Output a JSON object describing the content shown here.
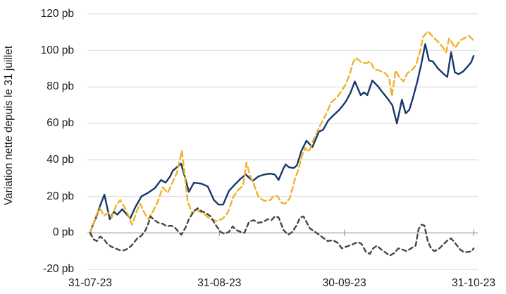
{
  "chart_data": {
    "type": "line",
    "title": "",
    "xlabel": "",
    "ylabel": "Variation nette depuis le 31 juillet",
    "y_unit": "pb",
    "ylim": [
      -20,
      120
    ],
    "y_ticks": [
      120,
      100,
      80,
      60,
      40,
      20,
      0,
      -20
    ],
    "y_tick_labels": [
      "120 pb",
      "100 pb",
      "80 pb",
      "60 pb",
      "40 pb",
      "20 pb",
      "0 pb",
      "-20 pb"
    ],
    "x_tick_days": [
      0,
      31,
      61,
      92
    ],
    "x_tick_labels": [
      "31-07-23",
      "31-08-23",
      "30-09-23",
      "31-10-23"
    ],
    "x_range_days": [
      0,
      92
    ],
    "grid": "horizontal",
    "legend": "none",
    "series": [
      {
        "id": "line-navy-solid",
        "color": "#17386B",
        "style": "solid",
        "points": [
          [
            0,
            0
          ],
          [
            0.6,
            4
          ],
          [
            1.5,
            9
          ],
          [
            2.4,
            15
          ],
          [
            3.4,
            21
          ],
          [
            4.7,
            7.5
          ],
          [
            5.7,
            11.5
          ],
          [
            6.5,
            10
          ],
          [
            7.7,
            13
          ],
          [
            8.6,
            10.5
          ],
          [
            9.6,
            8
          ],
          [
            10.8,
            14
          ],
          [
            12.3,
            20
          ],
          [
            13.9,
            22
          ],
          [
            15.5,
            24.5
          ],
          [
            17,
            29
          ],
          [
            18.1,
            27.5
          ],
          [
            19.2,
            31
          ],
          [
            19.8,
            34
          ],
          [
            21.8,
            38
          ],
          [
            22.8,
            30
          ],
          [
            23.7,
            22.5
          ],
          [
            24.9,
            27.5
          ],
          [
            26.6,
            27
          ],
          [
            28.2,
            25.5
          ],
          [
            29.7,
            18
          ],
          [
            30.8,
            15.5
          ],
          [
            31.9,
            15.5
          ],
          [
            33.3,
            23
          ],
          [
            34.5,
            26
          ],
          [
            36,
            29.5
          ],
          [
            37.3,
            32
          ],
          [
            39,
            28.5
          ],
          [
            40.4,
            31
          ],
          [
            41.8,
            32
          ],
          [
            43.2,
            32.5
          ],
          [
            44.3,
            32
          ],
          [
            45.2,
            29
          ],
          [
            46.3,
            35
          ],
          [
            46.9,
            37.5
          ],
          [
            47.7,
            36
          ],
          [
            48.8,
            35.5
          ],
          [
            49.6,
            37
          ],
          [
            50.7,
            45
          ],
          [
            51.9,
            50.5
          ],
          [
            53.3,
            47
          ],
          [
            54.9,
            55.5
          ],
          [
            55.9,
            56.5
          ],
          [
            57.1,
            61.5
          ],
          [
            58.4,
            64.5
          ],
          [
            59.8,
            67.5
          ],
          [
            61.2,
            71.5
          ],
          [
            62.4,
            76.5
          ],
          [
            63.5,
            83
          ],
          [
            64.9,
            75.5
          ],
          [
            65.7,
            77
          ],
          [
            66.5,
            75.5
          ],
          [
            67.7,
            83.5
          ],
          [
            69,
            80.5
          ],
          [
            70,
            77.5
          ],
          [
            71.4,
            73.5
          ],
          [
            72.5,
            70
          ],
          [
            73.6,
            60
          ],
          [
            74.8,
            73
          ],
          [
            75.7,
            65.5
          ],
          [
            76.6,
            67.5
          ],
          [
            77.5,
            74.5
          ],
          [
            78.5,
            83
          ],
          [
            79.4,
            92
          ],
          [
            80.4,
            103.5
          ],
          [
            81.3,
            94.5
          ],
          [
            82.2,
            94
          ],
          [
            83.5,
            90
          ],
          [
            84.9,
            87
          ],
          [
            85.7,
            85.5
          ],
          [
            86.6,
            99
          ],
          [
            87.5,
            88
          ],
          [
            88.4,
            87
          ],
          [
            89.5,
            88.5
          ],
          [
            90.5,
            91
          ],
          [
            91.4,
            93.5
          ],
          [
            92,
            97
          ]
        ]
      },
      {
        "id": "line-gold-dashed",
        "color": "#EFB227",
        "style": "dashed",
        "points": [
          [
            0,
            0
          ],
          [
            0.8,
            5
          ],
          [
            1.6,
            10.5
          ],
          [
            2.3,
            13.5
          ],
          [
            3.3,
            9.5
          ],
          [
            4.4,
            11
          ],
          [
            5.2,
            8.5
          ],
          [
            6.3,
            15.5
          ],
          [
            7.2,
            18
          ],
          [
            8.5,
            13
          ],
          [
            9.4,
            8
          ],
          [
            10.1,
            4.5
          ],
          [
            11.2,
            12
          ],
          [
            12,
            16
          ],
          [
            13,
            11
          ],
          [
            13.9,
            7.5
          ],
          [
            15.1,
            12
          ],
          [
            16.2,
            17
          ],
          [
            17.4,
            25
          ],
          [
            18.6,
            22
          ],
          [
            19.8,
            28
          ],
          [
            20.8,
            33
          ],
          [
            22,
            45
          ],
          [
            23.4,
            17
          ],
          [
            24.5,
            10.5
          ],
          [
            25.4,
            13
          ],
          [
            26.4,
            11.5
          ],
          [
            27.3,
            10.5
          ],
          [
            28.3,
            8.5
          ],
          [
            29.4,
            7
          ],
          [
            30.5,
            6.5
          ],
          [
            31.9,
            8
          ],
          [
            33,
            11
          ],
          [
            34.4,
            20
          ],
          [
            35.5,
            23.5
          ],
          [
            36.7,
            26
          ],
          [
            37.5,
            38.5
          ],
          [
            38.4,
            31
          ],
          [
            39.2,
            27
          ],
          [
            40.4,
            19.5
          ],
          [
            41.8,
            17.5
          ],
          [
            43.2,
            18
          ],
          [
            44.1,
            20.5
          ],
          [
            45,
            20
          ],
          [
            45.9,
            16.5
          ],
          [
            46.8,
            16
          ],
          [
            47.9,
            19
          ],
          [
            49.2,
            30
          ],
          [
            50,
            35
          ],
          [
            50.8,
            42
          ],
          [
            51.6,
            46.5
          ],
          [
            52.5,
            44.5
          ],
          [
            53.5,
            50.5
          ],
          [
            54.4,
            55
          ],
          [
            55.4,
            60
          ],
          [
            56.5,
            64.5
          ],
          [
            57.8,
            71.5
          ],
          [
            59.1,
            74
          ],
          [
            59.9,
            76.5
          ],
          [
            61.2,
            81
          ],
          [
            62.3,
            87
          ],
          [
            63,
            93
          ],
          [
            63.7,
            96
          ],
          [
            65.1,
            93.5
          ],
          [
            66.3,
            93
          ],
          [
            67.2,
            94
          ],
          [
            68.2,
            89.5
          ],
          [
            69.4,
            89
          ],
          [
            70.8,
            87.5
          ],
          [
            71.7,
            85
          ],
          [
            72.4,
            75
          ],
          [
            73.3,
            89
          ],
          [
            74.3,
            85
          ],
          [
            75.2,
            83
          ],
          [
            76.1,
            87.5
          ],
          [
            77.3,
            89.5
          ],
          [
            78.2,
            92
          ],
          [
            79.2,
            100
          ],
          [
            79.9,
            107.5
          ],
          [
            81,
            110.5
          ],
          [
            82.1,
            108
          ],
          [
            82.9,
            106
          ],
          [
            83.8,
            104
          ],
          [
            84.7,
            101.5
          ],
          [
            85.4,
            99
          ],
          [
            86.1,
            106.5
          ],
          [
            86.9,
            104
          ],
          [
            87.6,
            101.5
          ],
          [
            88.8,
            105.5
          ],
          [
            90,
            107
          ],
          [
            90.9,
            108
          ],
          [
            92,
            105.5
          ]
        ]
      },
      {
        "id": "line-gray-dashed",
        "color": "#464646",
        "style": "dashed",
        "points": [
          [
            0,
            0
          ],
          [
            0.8,
            -3.5
          ],
          [
            1.6,
            -4.5
          ],
          [
            2.4,
            -2
          ],
          [
            3.3,
            -3.5
          ],
          [
            4.1,
            -6
          ],
          [
            5,
            -7.5
          ],
          [
            6,
            -8.5
          ],
          [
            7.1,
            -9.5
          ],
          [
            8.2,
            -9.5
          ],
          [
            9.2,
            -8.5
          ],
          [
            10.3,
            -6
          ],
          [
            11.3,
            -3
          ],
          [
            12.3,
            -1.5
          ],
          [
            13.3,
            1.5
          ],
          [
            14,
            5.5
          ],
          [
            14.5,
            9
          ],
          [
            15.4,
            7
          ],
          [
            16.4,
            5.5
          ],
          [
            17.4,
            5
          ],
          [
            18.4,
            3.5
          ],
          [
            19.4,
            4
          ],
          [
            20.3,
            3
          ],
          [
            21.2,
            0.5
          ],
          [
            21.9,
            -1
          ],
          [
            22.9,
            3
          ],
          [
            23.7,
            7.5
          ],
          [
            24.9,
            12
          ],
          [
            25.8,
            13.5
          ],
          [
            26.6,
            12
          ],
          [
            27.7,
            11
          ],
          [
            28.9,
            9
          ],
          [
            30.2,
            4
          ],
          [
            31.3,
            0.5
          ],
          [
            32.2,
            -0.5
          ],
          [
            33.3,
            0.5
          ],
          [
            34.2,
            3.5
          ],
          [
            35.1,
            1.5
          ],
          [
            36.1,
            0.5
          ],
          [
            37,
            0
          ],
          [
            38.1,
            6
          ],
          [
            39.2,
            7
          ],
          [
            40.3,
            5.5
          ],
          [
            41.5,
            6
          ],
          [
            42.6,
            7.5
          ],
          [
            43.5,
            7
          ],
          [
            44.3,
            9
          ],
          [
            45.2,
            8.5
          ],
          [
            46.4,
            1.5
          ],
          [
            47.5,
            -1
          ],
          [
            48.5,
            0.5
          ],
          [
            49.5,
            4
          ],
          [
            50.4,
            8.5
          ],
          [
            51.2,
            9
          ],
          [
            52.7,
            2.5
          ],
          [
            54.3,
            0
          ],
          [
            55.8,
            -2.5
          ],
          [
            57,
            -4.5
          ],
          [
            58.3,
            -4
          ],
          [
            59.4,
            -5.5
          ],
          [
            60.4,
            -8.5
          ],
          [
            61.5,
            -7.5
          ],
          [
            62.8,
            -6.5
          ],
          [
            64.2,
            -5
          ],
          [
            65.1,
            -6
          ],
          [
            66.2,
            -10.5
          ],
          [
            67.1,
            -11.5
          ],
          [
            67.9,
            -8.5
          ],
          [
            68.8,
            -7
          ],
          [
            69.8,
            -9
          ],
          [
            71,
            -11
          ],
          [
            71.9,
            -12.5
          ],
          [
            73,
            -11
          ],
          [
            73.9,
            -8.5
          ],
          [
            74.8,
            -9
          ],
          [
            75.9,
            -10
          ],
          [
            77,
            -8.5
          ],
          [
            78.1,
            -7
          ],
          [
            78.8,
            2
          ],
          [
            79.5,
            4.5
          ],
          [
            80.2,
            4
          ],
          [
            81,
            -4.5
          ],
          [
            81.9,
            -9
          ],
          [
            82.7,
            -10
          ],
          [
            83.8,
            -8.5
          ],
          [
            84.9,
            -6
          ],
          [
            85.8,
            -4
          ],
          [
            86.6,
            -3
          ],
          [
            87.7,
            -6
          ],
          [
            88.7,
            -9
          ],
          [
            89.7,
            -10.5
          ],
          [
            90.6,
            -10.5
          ],
          [
            91.6,
            -10
          ],
          [
            92,
            -8.5
          ]
        ]
      }
    ]
  },
  "colors": {
    "background": "#FFFFFF",
    "gridline": "#D9D9D9",
    "zero_line": "#8C8C8C",
    "text": "#1A1A1A"
  }
}
